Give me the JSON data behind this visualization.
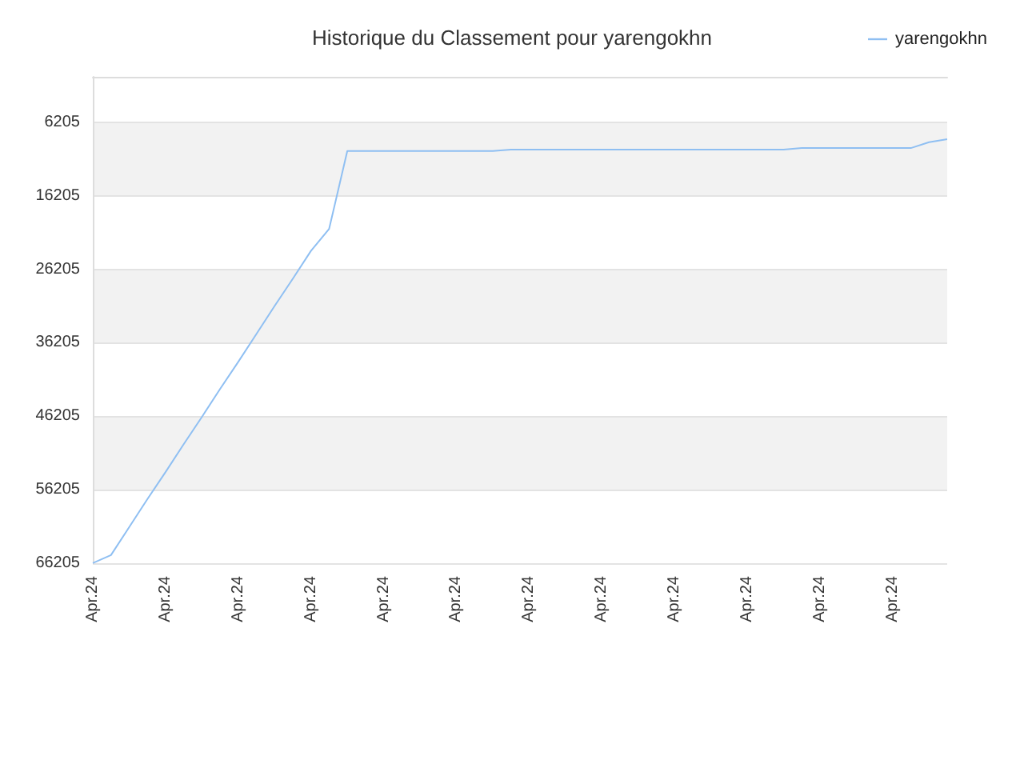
{
  "chart_data": {
    "type": "line",
    "title": "Historique du Classement pour yarengokhn",
    "categories": [
      "Apr.24",
      null,
      null,
      null,
      "Apr.24",
      null,
      null,
      null,
      "Apr.24",
      null,
      null,
      null,
      "Apr.24",
      null,
      null,
      null,
      "Apr.24",
      null,
      null,
      null,
      "Apr.24",
      null,
      null,
      null,
      "Apr.24",
      null,
      null,
      null,
      "Apr.24",
      null,
      null,
      null,
      "Apr.24",
      null,
      null,
      null,
      "Apr.24",
      null,
      null,
      null,
      "Apr.24",
      null,
      null,
      null,
      "Apr.24",
      null,
      null,
      null
    ],
    "series": [
      {
        "name": "yarengokhn",
        "color": "#8fbff2",
        "values": [
          66200,
          65100,
          61300,
          57500,
          53800,
          50000,
          46300,
          42500,
          38800,
          35000,
          31200,
          27500,
          23700,
          20700,
          10100,
          10100,
          10100,
          10100,
          10100,
          10100,
          10100,
          10100,
          10100,
          9900,
          9900,
          9900,
          9900,
          9900,
          9900,
          9900,
          9900,
          9900,
          9900,
          9900,
          9900,
          9900,
          9900,
          9900,
          9900,
          9700,
          9700,
          9700,
          9700,
          9700,
          9700,
          9700,
          8900,
          8500
        ]
      }
    ],
    "ylim": [
      66205,
      0
    ],
    "yticks": [
      6205,
      16205,
      26205,
      36205,
      46205,
      56205,
      66205
    ],
    "grid": "y",
    "legend": "top right",
    "marker": "none",
    "line_style": "solid"
  }
}
